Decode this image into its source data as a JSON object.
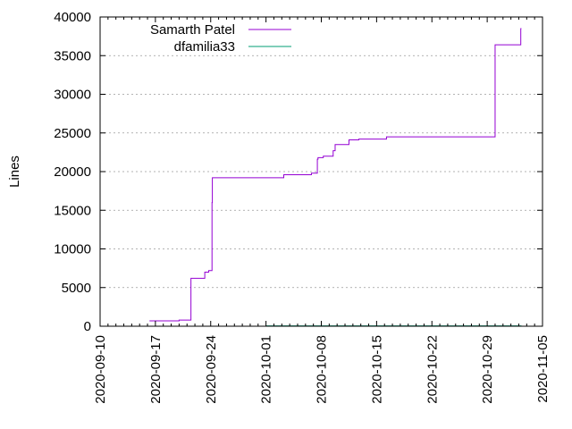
{
  "chart_data": {
    "type": "line",
    "title": "",
    "xlabel": "",
    "ylabel": "Lines",
    "x_type": "date",
    "xlim": [
      "2020-09-10",
      "2020-11-05"
    ],
    "ylim": [
      0,
      40000
    ],
    "y_ticks": [
      0,
      5000,
      10000,
      15000,
      20000,
      25000,
      30000,
      35000,
      40000
    ],
    "y_tick_labels": [
      "0",
      "5000",
      "10000",
      "15000",
      "20000",
      "25000",
      "30000",
      "35000",
      "40000"
    ],
    "x_ticks": [
      "2020-09-10",
      "2020-09-17",
      "2020-09-24",
      "2020-10-01",
      "2020-10-08",
      "2020-10-15",
      "2020-10-22",
      "2020-10-29",
      "2020-11-05"
    ],
    "x_tick_labels": [
      "2020-09-10",
      "2020-09-17",
      "2020-09-24",
      "2020-10-01",
      "2020-10-08",
      "2020-10-15",
      "2020-10-22",
      "2020-10-29",
      "2020-11-05"
    ],
    "grid": "horizontal dotted",
    "legend_position": "top-left",
    "series": [
      {
        "name": "Samarth Patel",
        "color": "#9400d3",
        "step": true,
        "points": [
          [
            "2020-09-16 06:00",
            700
          ],
          [
            "2020-09-20 00:00",
            700
          ],
          [
            "2020-09-20 06:00",
            800
          ],
          [
            "2020-09-21 12:00",
            800
          ],
          [
            "2020-09-21 14:00",
            6200
          ],
          [
            "2020-09-23 06:00",
            6200
          ],
          [
            "2020-09-23 08:00",
            7000
          ],
          [
            "2020-09-23 18:00",
            7000
          ],
          [
            "2020-09-23 20:00",
            7200
          ],
          [
            "2020-09-24 04:00",
            7200
          ],
          [
            "2020-09-24 05:00",
            16000
          ],
          [
            "2020-09-24 06:00",
            19200
          ],
          [
            "2020-10-03 06:00",
            19200
          ],
          [
            "2020-10-03 12:00",
            19600
          ],
          [
            "2020-10-06 18:00",
            19600
          ],
          [
            "2020-10-07 00:00",
            19800
          ],
          [
            "2020-10-07 12:00",
            19800
          ],
          [
            "2020-10-07 14:00",
            21600
          ],
          [
            "2020-10-08 06:00",
            21800
          ],
          [
            "2020-10-08 18:00",
            22000
          ],
          [
            "2020-10-09 12:00",
            22000
          ],
          [
            "2020-10-09 18:00",
            22700
          ],
          [
            "2020-10-11 12:00",
            23500
          ],
          [
            "2020-10-12 18:00",
            24100
          ],
          [
            "2020-10-15 06:00",
            24200
          ],
          [
            "2020-10-16 06:00",
            24200
          ],
          [
            "2020-10-17 00:00",
            24500
          ],
          [
            "2020-10-30 00:00",
            24500
          ],
          [
            "2020-11-02 06:00",
            36400
          ],
          [
            "2020-11-02 08:00",
            38500
          ]
        ]
      },
      {
        "name": "dfamilia33",
        "color": "#009e73",
        "step": false,
        "points": [
          [
            "2020-10-01 00:00",
            50
          ],
          [
            "2020-11-02 08:00",
            50
          ]
        ]
      }
    ]
  }
}
